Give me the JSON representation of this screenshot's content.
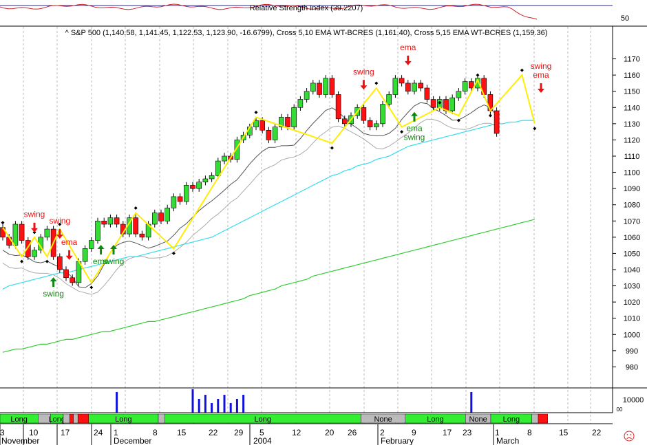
{
  "colors": {
    "up_candle": "#33dd33",
    "down_candle": "#ff1111",
    "swing_line": "#ffee00",
    "ema_fast": "#33ddee",
    "ema_slow": "#33cc33",
    "band_dark": "#555555",
    "band_light": "#aaaaaa",
    "rsi_line": "#cc2222",
    "rsi_ref": "#2222bb",
    "volume": "#1111dd",
    "sell_arrow": "#ee1111",
    "buy_arrow": "#118811",
    "strip_long": "#33ee33",
    "strip_none": "#bbbbbb",
    "strip_short": "#ff1111",
    "grid": "#bbbbbb"
  },
  "rsi_panel": {
    "title": "Relative Strength Index (39.2207)",
    "tick": "50"
  },
  "price_panel": {
    "title": "^ S&P 500 (1,140.58, 1,141.45, 1,122.53, 1,123.90, -16.6799), Cross 5,10 EMA WT-BCRES (1,161.40), Cross 5,15 EMA WT-BCRES (1,159.36)"
  },
  "volume_panel": {
    "tick": "10000",
    "tick_small": "00"
  },
  "x_labels": [
    "3",
    "November",
    "10",
    "17",
    "24",
    "1",
    "December",
    "8",
    "15",
    "22",
    "29",
    "2004",
    "5",
    "12",
    "20",
    "26",
    "2",
    "February",
    "9",
    "17",
    "23",
    "1",
    "March",
    "8",
    "15",
    "22"
  ],
  "strip_labels": [
    "Long",
    "Long",
    "Long",
    "Long",
    "None",
    "Long",
    "None",
    "Long"
  ],
  "signal_labels": [
    "swing",
    "swing",
    "ema",
    "swing",
    "swing",
    "ema",
    "swing",
    "ema",
    "swing",
    "ema",
    "ema",
    "swing",
    "swing",
    "ema"
  ],
  "status_icon": "sad-face-icon",
  "chart_data": {
    "type": "candlestick",
    "title": "^ S&P 500 (1,140.58, 1,141.45, 1,122.53, 1,123.90, -16.6799), Cross 5,10 EMA WT-BCRES (1,161.40), Cross 5,15 EMA WT-BCRES (1,159.36)",
    "ylim": [
      970,
      1180
    ],
    "y_ticks": [
      980,
      990,
      1000,
      1010,
      1020,
      1030,
      1040,
      1050,
      1060,
      1070,
      1080,
      1090,
      1100,
      1110,
      1120,
      1130,
      1140,
      1150,
      1160,
      1170
    ],
    "axis_position": "right",
    "grid": true,
    "candles": [
      {
        "o": 1066,
        "c": 1060
      },
      {
        "o": 1060,
        "c": 1055
      },
      {
        "o": 1055,
        "c": 1068
      },
      {
        "o": 1068,
        "c": 1058
      },
      {
        "o": 1058,
        "c": 1048
      },
      {
        "o": 1048,
        "c": 1052
      },
      {
        "o": 1052,
        "c": 1060
      },
      {
        "o": 1060,
        "c": 1065
      },
      {
        "o": 1065,
        "c": 1048
      },
      {
        "o": 1048,
        "c": 1040
      },
      {
        "o": 1040,
        "c": 1035
      },
      {
        "o": 1035,
        "c": 1032
      },
      {
        "o": 1032,
        "c": 1045
      },
      {
        "o": 1045,
        "c": 1053
      },
      {
        "o": 1053,
        "c": 1058
      },
      {
        "o": 1058,
        "c": 1070
      },
      {
        "o": 1070,
        "c": 1068
      },
      {
        "o": 1068,
        "c": 1072
      },
      {
        "o": 1072,
        "c": 1068
      },
      {
        "o": 1068,
        "c": 1062
      },
      {
        "o": 1062,
        "c": 1072
      },
      {
        "o": 1072,
        "c": 1062
      },
      {
        "o": 1062,
        "c": 1060
      },
      {
        "o": 1060,
        "c": 1068
      },
      {
        "o": 1068,
        "c": 1075
      },
      {
        "o": 1075,
        "c": 1070
      },
      {
        "o": 1070,
        "c": 1078
      },
      {
        "o": 1078,
        "c": 1085
      },
      {
        "o": 1085,
        "c": 1082
      },
      {
        "o": 1082,
        "c": 1092
      },
      {
        "o": 1092,
        "c": 1090
      },
      {
        "o": 1090,
        "c": 1094
      },
      {
        "o": 1094,
        "c": 1096
      },
      {
        "o": 1096,
        "c": 1098
      },
      {
        "o": 1098,
        "c": 1107
      },
      {
        "o": 1107,
        "c": 1110
      },
      {
        "o": 1110,
        "c": 1108
      },
      {
        "o": 1108,
        "c": 1120
      },
      {
        "o": 1120,
        "c": 1123
      },
      {
        "o": 1123,
        "c": 1128
      },
      {
        "o": 1128,
        "c": 1132
      },
      {
        "o": 1132,
        "c": 1126
      },
      {
        "o": 1126,
        "c": 1120
      },
      {
        "o": 1120,
        "c": 1128
      },
      {
        "o": 1128,
        "c": 1134
      },
      {
        "o": 1134,
        "c": 1128
      },
      {
        "o": 1128,
        "c": 1140
      },
      {
        "o": 1140,
        "c": 1145
      },
      {
        "o": 1145,
        "c": 1150
      },
      {
        "o": 1150,
        "c": 1155
      },
      {
        "o": 1155,
        "c": 1148
      },
      {
        "o": 1148,
        "c": 1158
      },
      {
        "o": 1158,
        "c": 1148
      },
      {
        "o": 1148,
        "c": 1133
      },
      {
        "o": 1133,
        "c": 1130
      },
      {
        "o": 1130,
        "c": 1135
      },
      {
        "o": 1135,
        "c": 1140
      },
      {
        "o": 1140,
        "c": 1132
      },
      {
        "o": 1132,
        "c": 1128
      },
      {
        "o": 1128,
        "c": 1130
      },
      {
        "o": 1130,
        "c": 1142
      },
      {
        "o": 1142,
        "c": 1148
      },
      {
        "o": 1148,
        "c": 1158
      },
      {
        "o": 1158,
        "c": 1155
      },
      {
        "o": 1155,
        "c": 1150
      },
      {
        "o": 1150,
        "c": 1155
      },
      {
        "o": 1155,
        "c": 1152
      },
      {
        "o": 1152,
        "c": 1145
      },
      {
        "o": 1145,
        "c": 1140
      },
      {
        "o": 1140,
        "c": 1145
      },
      {
        "o": 1145,
        "c": 1138
      },
      {
        "o": 1138,
        "c": 1146
      },
      {
        "o": 1146,
        "c": 1150
      },
      {
        "o": 1150,
        "c": 1156
      },
      {
        "o": 1156,
        "c": 1152
      },
      {
        "o": 1152,
        "c": 1158
      },
      {
        "o": 1158,
        "c": 1148
      },
      {
        "o": 1148,
        "c": 1138
      },
      {
        "o": 1138,
        "c": 1124
      }
    ],
    "swing_zigzag": [
      [
        0,
        1066
      ],
      [
        3,
        1048
      ],
      [
        5,
        1060
      ],
      [
        7,
        1048
      ],
      [
        9,
        1065
      ],
      [
        14,
        1032
      ],
      [
        21,
        1075
      ],
      [
        27,
        1053
      ],
      [
        40,
        1134
      ],
      [
        52,
        1118
      ],
      [
        59,
        1152
      ],
      [
        63,
        1128
      ],
      [
        69,
        1140
      ],
      [
        72,
        1135
      ],
      [
        75,
        1157
      ],
      [
        77,
        1138
      ],
      [
        82,
        1160
      ],
      [
        84,
        1130
      ]
    ],
    "ema_fast": [
      1028,
      1030,
      1031,
      1032,
      1033,
      1034,
      1035,
      1036,
      1037,
      1038,
      1038,
      1039,
      1040,
      1041,
      1042,
      1043,
      1044,
      1045,
      1046,
      1047,
      1048,
      1048,
      1049,
      1050,
      1051,
      1052,
      1053,
      1054,
      1055,
      1056,
      1057,
      1058,
      1059,
      1060,
      1062,
      1064,
      1066,
      1068,
      1070,
      1072,
      1074,
      1076,
      1078,
      1080,
      1082,
      1084,
      1086,
      1088,
      1090,
      1092,
      1094,
      1096,
      1098,
      1099,
      1101,
      1102,
      1104,
      1105,
      1106,
      1108,
      1109,
      1110,
      1112,
      1114,
      1116,
      1117,
      1118,
      1119,
      1120,
      1121,
      1122,
      1123,
      1124,
      1125,
      1126,
      1127,
      1128,
      1129,
      1130,
      1130,
      1131,
      1131,
      1132,
      1132,
      1132
    ],
    "ema_slow": [
      989,
      990,
      991,
      991,
      992,
      993,
      994,
      994,
      995,
      996,
      997,
      997,
      998,
      999,
      1000,
      1001,
      1002,
      1002,
      1003,
      1004,
      1005,
      1006,
      1007,
      1008,
      1008,
      1009,
      1010,
      1011,
      1012,
      1013,
      1014,
      1015,
      1016,
      1017,
      1018,
      1019,
      1020,
      1021,
      1022,
      1024,
      1025,
      1026,
      1027,
      1028,
      1030,
      1031,
      1032,
      1033,
      1034,
      1036,
      1037,
      1038,
      1039,
      1040,
      1041,
      1042,
      1043,
      1044,
      1045,
      1046,
      1047,
      1048,
      1049,
      1050,
      1051,
      1052,
      1053,
      1054,
      1055,
      1056,
      1057,
      1058,
      1059,
      1060,
      1061,
      1062,
      1063,
      1064,
      1065,
      1066,
      1067,
      1068,
      1069,
      1070,
      1071
    ],
    "volume_spikes": [
      18,
      30,
      31,
      32,
      33,
      34,
      35,
      36,
      37,
      38,
      74
    ],
    "strip_segments": [
      {
        "label": "Long",
        "state": "long",
        "from": 0,
        "to": 6
      },
      {
        "label": "",
        "state": "none",
        "from": 6,
        "to": 8
      },
      {
        "label": "Long",
        "state": "long",
        "from": 8,
        "to": 10
      },
      {
        "label": "",
        "state": "none",
        "from": 10,
        "to": 11
      },
      {
        "label": "",
        "state": "short",
        "from": 11,
        "to": 11.6
      },
      {
        "label": "",
        "state": "none",
        "from": 11.6,
        "to": 12.3
      },
      {
        "label": "",
        "state": "short",
        "from": 12.3,
        "to": 14
      },
      {
        "label": "Long",
        "state": "long",
        "from": 14,
        "to": 25
      },
      {
        "label": "",
        "state": "none",
        "from": 25,
        "to": 26
      },
      {
        "label": "Long",
        "state": "long",
        "from": 26,
        "to": 57
      },
      {
        "label": "None",
        "state": "none",
        "from": 57,
        "to": 64
      },
      {
        "label": "Long",
        "state": "long",
        "from": 64,
        "to": 73.5
      },
      {
        "label": "None",
        "state": "none",
        "from": 73.5,
        "to": 77.5
      },
      {
        "label": "Long",
        "state": "long",
        "from": 77.5,
        "to": 84
      },
      {
        "label": "",
        "state": "none",
        "from": 84,
        "to": 85
      },
      {
        "label": "",
        "state": "short",
        "from": 85,
        "to": 86.5
      }
    ],
    "signals": [
      {
        "i": 5,
        "dir": "down",
        "label": "swing"
      },
      {
        "i": 9,
        "dir": "down",
        "label": "swing"
      },
      {
        "i": 10.5,
        "dir": "down",
        "label": "ema"
      },
      {
        "i": 8,
        "dir": "up",
        "label": "swing"
      },
      {
        "i": 15.5,
        "dir": "up",
        "label": "ema"
      },
      {
        "i": 17.5,
        "dir": "up",
        "label": "swing"
      },
      {
        "i": 57,
        "dir": "down",
        "label": "swing"
      },
      {
        "i": 64,
        "dir": "down",
        "label": "ema"
      },
      {
        "i": 65,
        "dir": "up",
        "label": "ema swing"
      },
      {
        "i": 85,
        "dir": "down",
        "label": "swing ema"
      }
    ]
  }
}
